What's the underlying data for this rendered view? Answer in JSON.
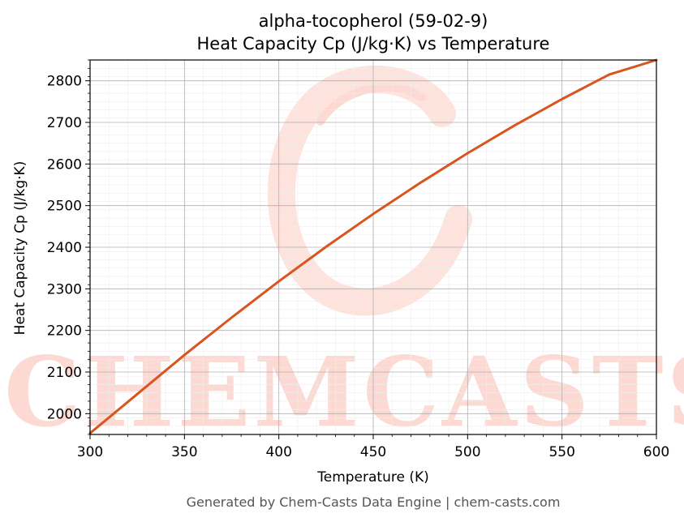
{
  "chart_data": {
    "type": "line",
    "title": "alpha-tocopherol (59-02-9)",
    "subtitle": "Heat Capacity Cp (J/kg·K) vs Temperature",
    "xlabel": "Temperature (K)",
    "ylabel": "Heat Capacity Cp (J/kg·K)",
    "xlim": [
      300,
      600
    ],
    "ylim": [
      1950,
      2850
    ],
    "x_ticks": [
      300,
      350,
      400,
      450,
      500,
      550,
      600
    ],
    "y_ticks": [
      2000,
      2100,
      2200,
      2300,
      2400,
      2500,
      2600,
      2700,
      2800
    ],
    "grid": true,
    "legend": "none",
    "series": [
      {
        "color": "#d9541e",
        "x": [
          300,
          325,
          350,
          375,
          400,
          425,
          450,
          475,
          500,
          525,
          550,
          575,
          600
        ],
        "y": [
          1953,
          2047,
          2141,
          2231,
          2318,
          2401,
          2480,
          2555,
          2626,
          2693,
          2756,
          2815,
          2850
        ]
      }
    ]
  },
  "watermark": {
    "text": "CHEMCASTS",
    "color": "#fcd9d2"
  },
  "footer": "Generated by Chem-Casts Data Engine | chem-casts.com"
}
